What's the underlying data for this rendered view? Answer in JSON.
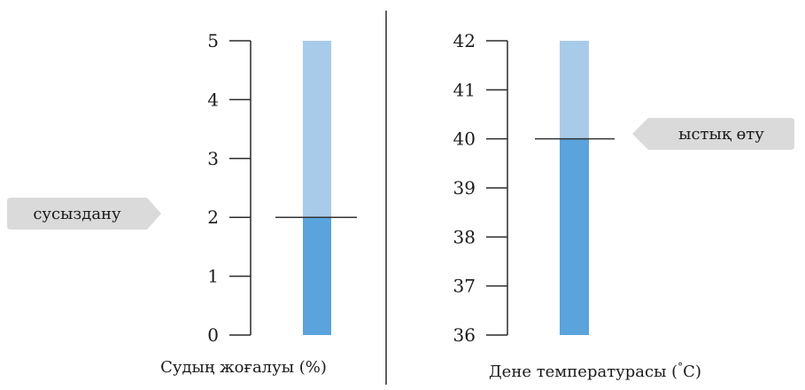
{
  "chart_data": [
    {
      "type": "bar",
      "xlabel": "Судың жоғалуы (%)",
      "ylim": [
        0,
        5
      ],
      "ticks": [
        0,
        1,
        2,
        3,
        4,
        5
      ],
      "bar_max": 5,
      "value": 2,
      "threshold_label": "сусыздану",
      "threshold_side": "left"
    },
    {
      "type": "bar",
      "xlabel_parts": [
        "Дене температурасы (",
        "°",
        "C)"
      ],
      "ylim": [
        36,
        42
      ],
      "ticks": [
        36,
        37,
        38,
        39,
        40,
        41,
        42
      ],
      "bar_max": 42,
      "value": 40,
      "threshold_label": "ыстық өту",
      "threshold_side": "right"
    }
  ],
  "colors": {
    "bar_fill_dark": "#5aa3dc",
    "bar_fill_light": "#a9cbea",
    "axis": "#2a2a2a",
    "label_box": "#dadada",
    "text": "#1a1a1a"
  }
}
